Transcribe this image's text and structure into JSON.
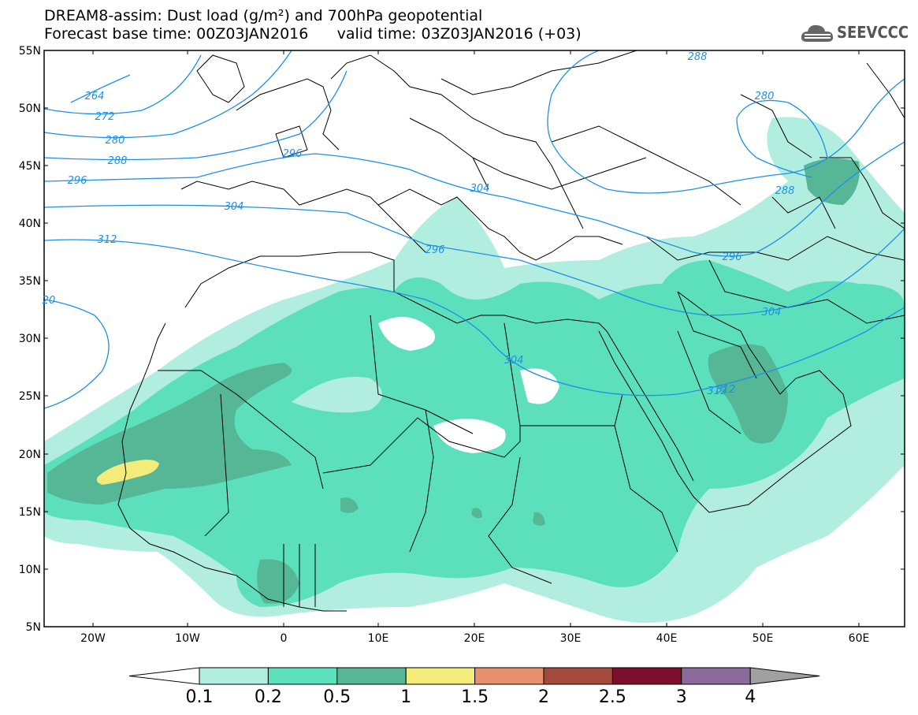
{
  "header": {
    "title_line1": "DREAM8-assim: Dust load (g/m²) and 700hPa geopotential",
    "title_line2": "Forecast base time: 00Z03JAN2016      valid time: 03Z03JAN2016 (+03)",
    "logo_text": "SEEVCCC"
  },
  "map": {
    "lat_labels": [
      "55N",
      "50N",
      "45N",
      "40N",
      "35N",
      "30N",
      "25N",
      "20N",
      "15N",
      "10N",
      "5N"
    ],
    "lon_labels": [
      "20W",
      "10W",
      "0",
      "10E",
      "20E",
      "30E",
      "40E",
      "50E",
      "60E"
    ],
    "contour_labels": [
      {
        "text": "264"
      },
      {
        "text": "272"
      },
      {
        "text": "280"
      },
      {
        "text": "288"
      },
      {
        "text": "296"
      },
      {
        "text": "304"
      },
      {
        "text": "312"
      },
      {
        "text": "20"
      },
      {
        "text": "296"
      },
      {
        "text": "304"
      },
      {
        "text": "296"
      },
      {
        "text": "304"
      },
      {
        "text": "312"
      },
      {
        "text": "296"
      },
      {
        "text": "304"
      },
      {
        "text": "312"
      },
      {
        "text": "288"
      },
      {
        "text": "280"
      },
      {
        "text": "288"
      }
    ],
    "colors": {
      "contour": "#1e90e6",
      "border": "#000000"
    }
  },
  "legend": {
    "labels": [
      "0.1",
      "0.2",
      "0.5",
      "1",
      "1.5",
      "2",
      "2.5",
      "3",
      "4"
    ],
    "colors": [
      "#b2eedf",
      "#5ce0bc",
      "#55b795",
      "#f3ec7a",
      "#e8906b",
      "#a34a3c",
      "#7d0f2e",
      "#8c6a9e"
    ],
    "end_colors": {
      "left": "#ffffff",
      "right": "#a0a0a0"
    }
  }
}
